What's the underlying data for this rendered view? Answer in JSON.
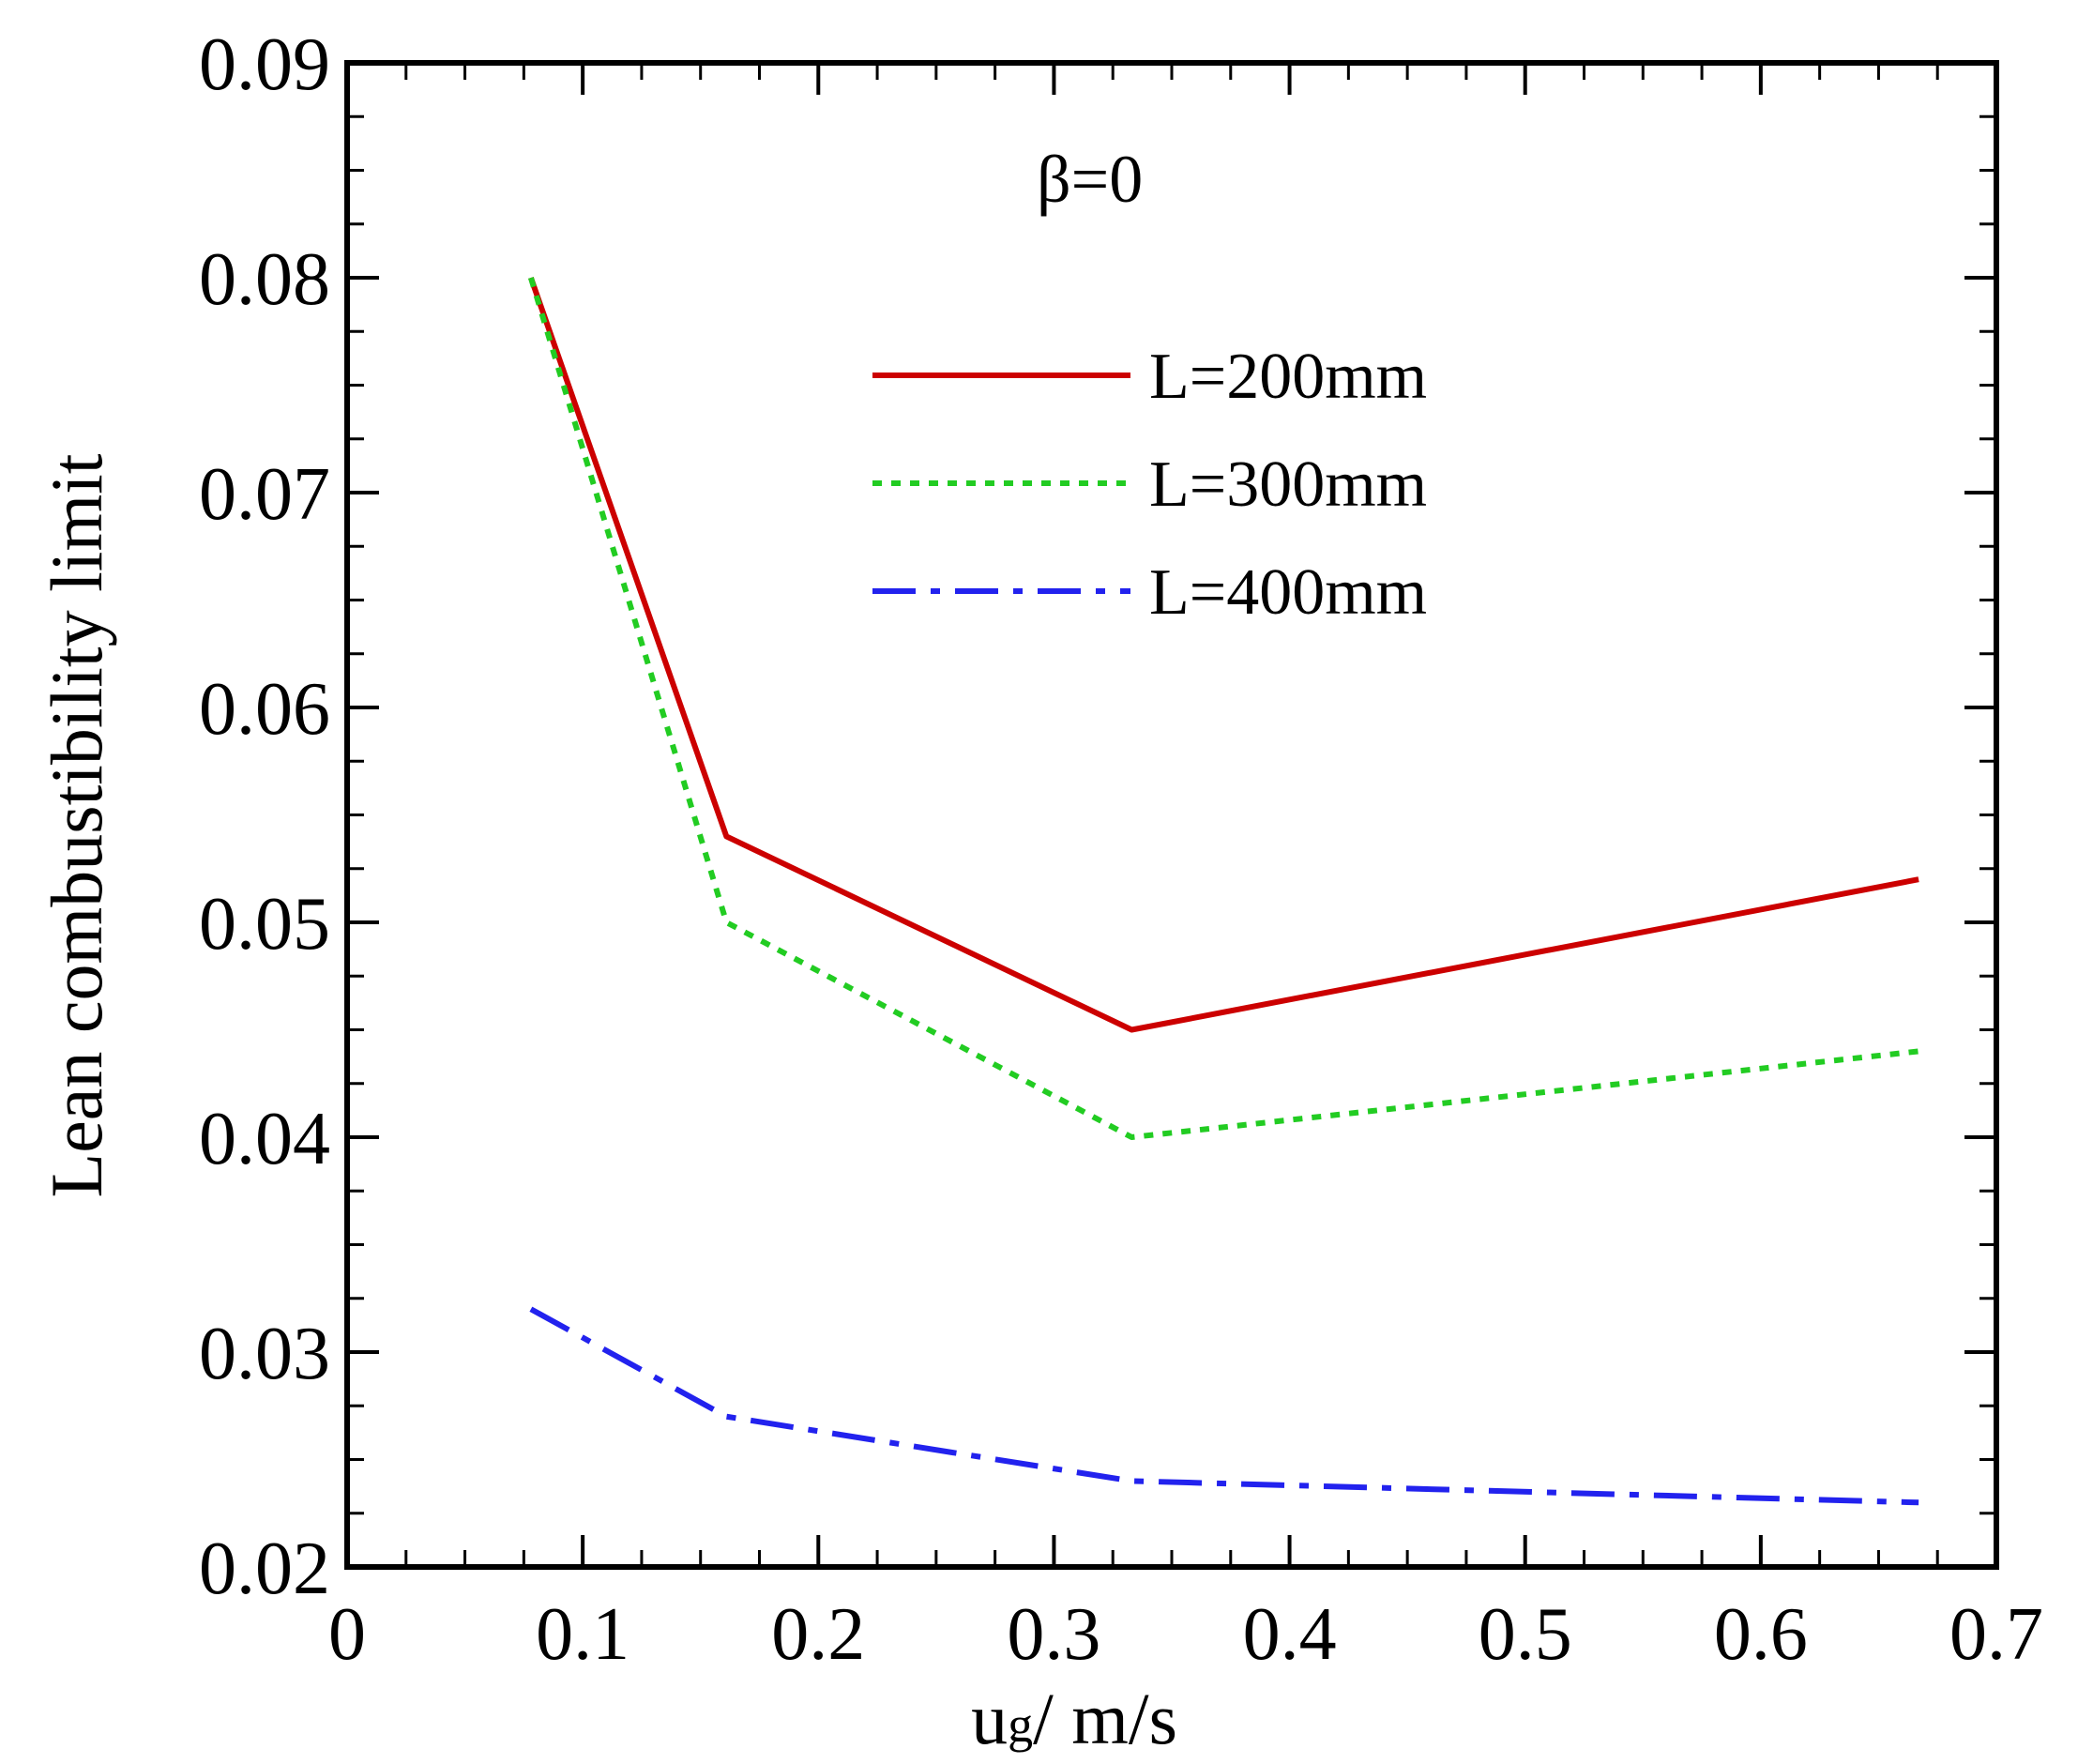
{
  "chart_data": {
    "type": "line",
    "title": "",
    "annotation": "β=0",
    "xlabel": {
      "main": "u",
      "subscript": "g",
      "unit": "/ m/s"
    },
    "ylabel": "Lean combustibility limit",
    "xlim": [
      0,
      0.7
    ],
    "ylim": [
      0.02,
      0.09
    ],
    "x_ticks": [
      0,
      0.1,
      0.2,
      0.3,
      0.4,
      0.5,
      0.6,
      0.7
    ],
    "x_tick_labels": [
      "0",
      "0.1",
      "0.2",
      "0.3",
      "0.4",
      "0.5",
      "0.6",
      "0.7"
    ],
    "y_ticks": [
      0.02,
      0.03,
      0.04,
      0.05,
      0.06,
      0.07,
      0.08,
      0.09
    ],
    "y_tick_labels": [
      "0.02",
      "0.03",
      "0.04",
      "0.05",
      "0.06",
      "0.07",
      "0.08",
      "0.09"
    ],
    "grid": false,
    "legend_position": "top-right",
    "series": [
      {
        "name": "L=200mm",
        "color": "#cc0000",
        "style": "solid",
        "x": [
          0.078,
          0.161,
          0.333,
          0.667
        ],
        "y": [
          0.08,
          0.054,
          0.045,
          0.052
        ]
      },
      {
        "name": "L=300mm",
        "color": "#22cc22",
        "style": "dotted",
        "x": [
          0.078,
          0.161,
          0.333,
          0.667
        ],
        "y": [
          0.08,
          0.05,
          0.04,
          0.044
        ]
      },
      {
        "name": "L=400mm",
        "color": "#2222ee",
        "style": "dashdot",
        "x": [
          0.078,
          0.161,
          0.333,
          0.4,
          0.667
        ],
        "y": [
          0.032,
          0.027,
          0.024,
          0.0238,
          0.023
        ]
      }
    ]
  }
}
